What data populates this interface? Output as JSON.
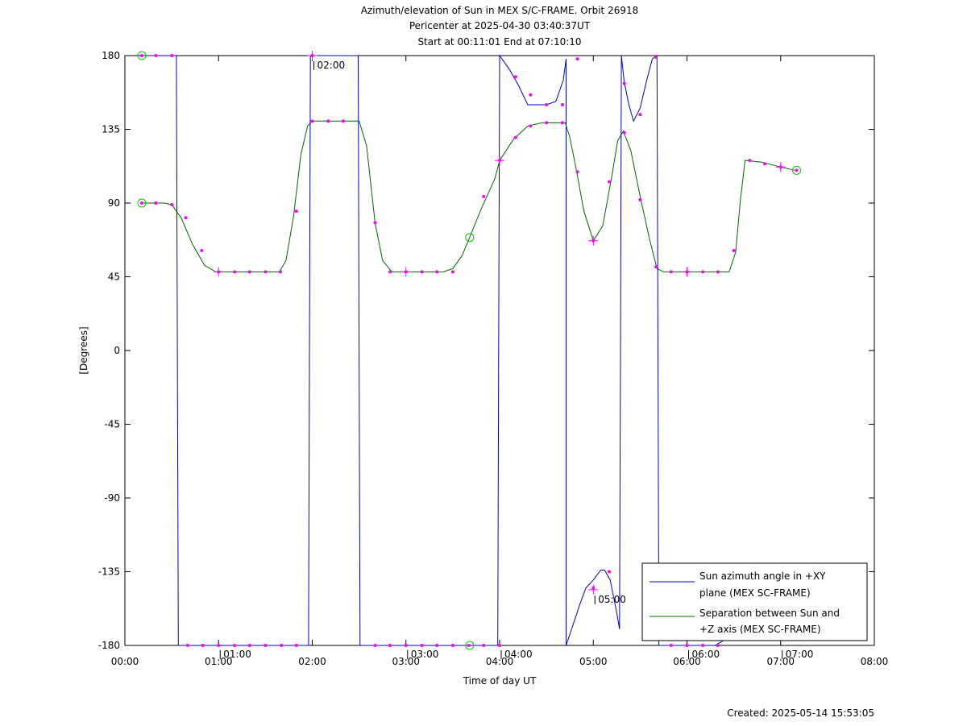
{
  "chart_data": {
    "type": "line",
    "title_lines": [
      "Azimuth/elevation of Sun in MEX S/C-FRAME.  Orbit 26918",
      "Pericenter at 2025-04-30 03:40:37UT",
      "Start at 00:11:01 End at 07:10:10"
    ],
    "xlabel": "Time of day UT",
    "ylabel": "[Degrees]",
    "xlim": [
      0,
      8
    ],
    "ylim": [
      -180,
      180
    ],
    "x_ticks": [
      "00:00",
      "01:00",
      "02:00",
      "03:00",
      "04:00",
      "05:00",
      "06:00",
      "07:00",
      "08:00"
    ],
    "y_ticks": [
      "180",
      "135",
      "90",
      "45",
      "0",
      "-45",
      "-90",
      "-135",
      "-180"
    ],
    "legend": [
      {
        "label_lines": [
          "Sun azimuth angle in +XY",
          "plane (MEX SC-FRAME)"
        ],
        "color": "#0000cc"
      },
      {
        "label_lines": [
          "Separation between Sun and",
          "+Z axis (MEX SC-FRAME)"
        ],
        "color": "#006600"
      }
    ],
    "legend_position": "bottom-right",
    "hour_annotations": [
      {
        "text": "01:00",
        "x": 1.0,
        "y": -180
      },
      {
        "text": "02:00",
        "x": 2.0,
        "y": 180
      },
      {
        "text": "03:00",
        "x": 3.0,
        "y": -180
      },
      {
        "text": "04:00",
        "x": 4.0,
        "y": -180
      },
      {
        "text": "05:00",
        "x": 5.0,
        "y": -148
      },
      {
        "text": "06:00",
        "x": 6.0,
        "y": -180
      },
      {
        "text": "07:00",
        "x": 7.0,
        "y": -180
      }
    ],
    "series": [
      {
        "name": "Sun azimuth angle in +XY plane (MEX SC-FRAME)",
        "color": "#0000cc",
        "x": [
          0.18,
          0.33,
          0.5,
          0.55,
          0.56,
          0.57,
          0.7,
          1.0,
          1.5,
          1.96,
          1.97,
          1.98,
          2.1,
          2.49,
          2.5,
          2.51,
          3.0,
          3.55,
          3.98,
          3.99,
          4.0,
          4.1,
          4.2,
          4.3,
          4.4,
          4.5,
          4.6,
          4.68,
          4.71,
          4.71,
          4.78,
          4.85,
          4.92,
          5.0,
          5.08,
          5.12,
          5.18,
          5.25,
          5.28,
          5.29,
          5.3,
          5.33,
          5.38,
          5.43,
          5.5,
          5.57,
          5.63,
          5.68,
          5.69,
          5.7,
          6.0,
          6.3,
          6.45,
          6.5
        ],
        "y": [
          180,
          180,
          180,
          180,
          0,
          -180,
          -180,
          -180,
          -180,
          -180,
          0,
          180,
          180,
          180,
          0,
          -180,
          -180,
          -180,
          -180,
          0,
          180,
          172,
          162,
          150,
          150,
          150,
          152,
          165,
          178,
          -180,
          -168,
          -156,
          -145,
          -140,
          -134,
          -134,
          -140,
          -160,
          -170,
          0,
          180,
          164,
          150,
          140,
          148,
          165,
          178,
          180,
          0,
          -180,
          -180,
          -180,
          -175,
          -172
        ]
      },
      {
        "name": "Separation between Sun and +Z axis (MEX SC-FRAME)",
        "color": "#006600",
        "x": [
          0.18,
          0.3,
          0.42,
          0.5,
          0.6,
          0.72,
          0.85,
          0.97,
          1.1,
          1.3,
          1.5,
          1.65,
          1.72,
          1.8,
          1.88,
          1.95,
          2.0,
          2.2,
          2.4,
          2.5,
          2.58,
          2.67,
          2.75,
          2.85,
          3.0,
          3.2,
          3.4,
          3.5,
          3.6,
          3.68,
          3.8,
          3.95,
          4.0,
          4.15,
          4.3,
          4.45,
          4.6,
          4.7,
          4.75,
          4.82,
          4.9,
          5.0,
          5.1,
          5.2,
          5.26,
          5.32,
          5.4,
          5.5,
          5.6,
          5.68,
          5.75,
          5.9,
          6.1,
          6.3,
          6.45,
          6.52,
          6.57,
          6.62,
          6.8,
          7.0,
          7.15
        ],
        "y": [
          90,
          90,
          90,
          89,
          81,
          65,
          52,
          48,
          48,
          48,
          48,
          48,
          55,
          82,
          120,
          137,
          140,
          140,
          140,
          140,
          125,
          78,
          55,
          48,
          48,
          48,
          48,
          50,
          58,
          69,
          86,
          105,
          116,
          129,
          137,
          139,
          139,
          139,
          130,
          110,
          85,
          67,
          76,
          107,
          128,
          134,
          122,
          94,
          68,
          50,
          48,
          48,
          48,
          48,
          48,
          60,
          92,
          116,
          115,
          112,
          110
        ]
      }
    ],
    "markers": {
      "color": "#ff00ff",
      "points": [
        {
          "x": 0.18,
          "y": 180
        },
        {
          "x": 0.33,
          "y": 180
        },
        {
          "x": 0.5,
          "y": 180
        },
        {
          "x": 0.18,
          "y": 90
        },
        {
          "x": 0.33,
          "y": 90
        },
        {
          "x": 0.5,
          "y": 89
        },
        {
          "x": 0.65,
          "y": 81
        },
        {
          "x": 0.82,
          "y": 61
        },
        {
          "x": 1.0,
          "y": 48
        },
        {
          "x": 1.17,
          "y": 48
        },
        {
          "x": 1.33,
          "y": 48
        },
        {
          "x": 1.5,
          "y": 48
        },
        {
          "x": 1.66,
          "y": 48
        },
        {
          "x": 1.83,
          "y": 85
        },
        {
          "x": 2.0,
          "y": 140
        },
        {
          "x": 2.17,
          "y": 140
        },
        {
          "x": 2.33,
          "y": 140
        },
        {
          "x": 2.67,
          "y": 78
        },
        {
          "x": 2.83,
          "y": 48
        },
        {
          "x": 3.0,
          "y": 48
        },
        {
          "x": 3.17,
          "y": 48
        },
        {
          "x": 3.33,
          "y": 48
        },
        {
          "x": 3.5,
          "y": 48
        },
        {
          "x": 3.83,
          "y": 94
        },
        {
          "x": 4.0,
          "y": 116
        },
        {
          "x": 4.17,
          "y": 130
        },
        {
          "x": 4.33,
          "y": 137
        },
        {
          "x": 4.5,
          "y": 139
        },
        {
          "x": 4.67,
          "y": 139
        },
        {
          "x": 4.83,
          "y": 109
        },
        {
          "x": 5.0,
          "y": 67
        },
        {
          "x": 5.17,
          "y": 103
        },
        {
          "x": 5.33,
          "y": 133
        },
        {
          "x": 5.5,
          "y": 92
        },
        {
          "x": 5.67,
          "y": 51
        },
        {
          "x": 5.83,
          "y": 48
        },
        {
          "x": 6.0,
          "y": 48
        },
        {
          "x": 6.17,
          "y": 48
        },
        {
          "x": 6.33,
          "y": 48
        },
        {
          "x": 6.5,
          "y": 61
        },
        {
          "x": 6.67,
          "y": 116
        },
        {
          "x": 6.83,
          "y": 114
        },
        {
          "x": 7.0,
          "y": 112
        },
        {
          "x": 7.17,
          "y": 110
        },
        {
          "x": 0.67,
          "y": -180
        },
        {
          "x": 0.83,
          "y": -180
        },
        {
          "x": 1.0,
          "y": -180
        },
        {
          "x": 1.17,
          "y": -180
        },
        {
          "x": 1.33,
          "y": -180
        },
        {
          "x": 1.5,
          "y": -180
        },
        {
          "x": 1.67,
          "y": -180
        },
        {
          "x": 1.83,
          "y": -180
        },
        {
          "x": 2.0,
          "y": 180
        },
        {
          "x": 2.67,
          "y": -180
        },
        {
          "x": 2.83,
          "y": -180
        },
        {
          "x": 3.0,
          "y": -180
        },
        {
          "x": 3.17,
          "y": -180
        },
        {
          "x": 3.33,
          "y": -180
        },
        {
          "x": 3.5,
          "y": -180
        },
        {
          "x": 3.67,
          "y": -180
        },
        {
          "x": 3.83,
          "y": -180
        },
        {
          "x": 4.0,
          "y": -180
        },
        {
          "x": 4.17,
          "y": 167
        },
        {
          "x": 4.33,
          "y": 156
        },
        {
          "x": 4.5,
          "y": 150
        },
        {
          "x": 4.67,
          "y": 150
        },
        {
          "x": 4.83,
          "y": 178
        },
        {
          "x": 5.0,
          "y": -145
        },
        {
          "x": 5.17,
          "y": -135
        },
        {
          "x": 5.33,
          "y": 163
        },
        {
          "x": 5.5,
          "y": 144
        },
        {
          "x": 5.67,
          "y": 179
        },
        {
          "x": 5.83,
          "y": -180
        },
        {
          "x": 6.0,
          "y": -180
        },
        {
          "x": 6.17,
          "y": -180
        },
        {
          "x": 6.33,
          "y": -180
        },
        {
          "x": 6.5,
          "y": -175
        }
      ],
      "crosses": [
        {
          "x": 1.0,
          "y": 48
        },
        {
          "x": 2.0,
          "y": 180
        },
        {
          "x": 3.0,
          "y": 48
        },
        {
          "x": 4.0,
          "y": 116
        },
        {
          "x": 5.0,
          "y": 67
        },
        {
          "x": 6.0,
          "y": 48
        },
        {
          "x": 7.0,
          "y": 112
        },
        {
          "x": 5.0,
          "y": -146
        }
      ]
    },
    "circles": {
      "color": "#00cc00",
      "points": [
        {
          "x": 0.18,
          "y": 180
        },
        {
          "x": 0.18,
          "y": 90
        },
        {
          "x": 3.68,
          "y": 69
        },
        {
          "x": 3.68,
          "y": -180
        },
        {
          "x": 7.17,
          "y": 110
        }
      ]
    }
  },
  "footer": {
    "created": "Created: 2025-05-14 15:53:05"
  }
}
